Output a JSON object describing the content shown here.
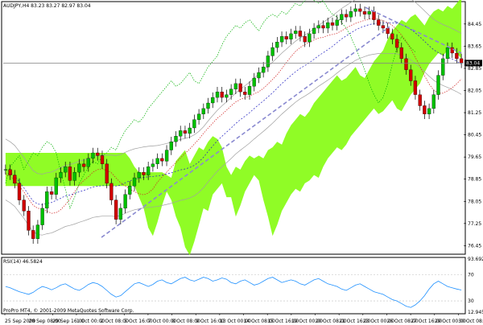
{
  "header": {
    "main_title": "AUDJPY,H4  83.23 83.27 82.97 83.04",
    "rsi_title": "RSI(14) 46.5824",
    "copyright": "ProPro MT4, © 2001-2009 MetaQuotes Software Corp."
  },
  "chart_data": [
    {
      "type": "candlestick",
      "title": "AUDJPY,H4",
      "ohlc_header": [
        83.23,
        83.27,
        82.97,
        83.04
      ],
      "current_price": 83.04,
      "y_ticks": [
        84.45,
        83.65,
        82.85,
        82.05,
        81.25,
        80.45,
        79.65,
        78.85,
        78.05,
        77.25,
        76.45
      ],
      "y_tick_labels": [
        "84.45",
        "83.65",
        "82.85",
        "82.05",
        "81.25",
        "80.45",
        "79.65",
        "78.85",
        "78.05",
        "77.25",
        "76.45"
      ],
      "ylim": [
        76.2,
        85.2
      ],
      "x_tick_labels": [
        "25 Sep 2009",
        "28 Sep 08:00",
        "29 Sep 16:00",
        "1 Oct 00:00",
        "2 Oct 08:00",
        "5 Oct 16:00",
        "7 Oct 00:00",
        "8 Oct 08:00",
        "9 Oct 16:00",
        "13 Oct 00:00",
        "14 Oct 08:00",
        "15 Oct 16:00",
        "19 Oct 00:00",
        "20 Oct 08:00",
        "21 Oct 16:00",
        "23 Oct 00:00",
        "26 Oct 08:00",
        "27 Oct 16:00",
        "29 Oct 00:00",
        "30 Oct 08:00"
      ],
      "closes": [
        79.2,
        79.0,
        78.7,
        78.1,
        77.7,
        77.0,
        76.7,
        77.2,
        77.8,
        78.4,
        78.3,
        78.9,
        79.1,
        79.3,
        78.8,
        79.1,
        79.4,
        79.3,
        79.6,
        79.8,
        79.7,
        79.4,
        78.7,
        78.1,
        77.4,
        77.8,
        78.3,
        78.6,
        78.9,
        79.1,
        79.0,
        79.3,
        79.4,
        79.6,
        79.5,
        79.9,
        80.2,
        80.4,
        80.6,
        80.5,
        80.7,
        81.0,
        81.2,
        81.4,
        81.6,
        81.8,
        82.0,
        81.8,
        81.9,
        82.1,
        82.3,
        82.0,
        81.9,
        82.2,
        82.5,
        82.7,
        82.9,
        83.3,
        83.6,
        83.8,
        84.0,
        83.9,
        84.1,
        84.2,
        84.0,
        83.8,
        84.1,
        84.3,
        84.4,
        84.3,
        84.5,
        84.4,
        84.6,
        84.8,
        84.7,
        84.9,
        85.0,
        84.9,
        84.8,
        84.9,
        84.6,
        84.4,
        84.3,
        84.1,
        83.9,
        83.6,
        83.2,
        82.8,
        82.4,
        81.9,
        81.5,
        81.2,
        81.4,
        81.9,
        82.6,
        83.2,
        83.6,
        83.4,
        83.2,
        83.04
      ],
      "trendlines": [
        {
          "from": {
            "x": "2 Oct 08:00",
            "y": 76.75
          },
          "to": {
            "x": "26 Oct 08:00",
            "y": 84.35
          }
        },
        {
          "from": {
            "x": "23 Oct 00:00",
            "y": 85.05
          },
          "to": {
            "x": "30 Oct 08:00",
            "y": 83.4
          }
        }
      ],
      "indicators": [
        "Ichimoku cloud",
        "Bollinger bands",
        "Moving averages"
      ]
    },
    {
      "type": "line",
      "title": "RSI(14)",
      "last_value": 46.5824,
      "y_ticks": [
        93.692,
        70,
        30,
        12.9456
      ],
      "y_tick_labels": [
        "93.692",
        "70",
        "30",
        "12.9456"
      ],
      "ylim": [
        12.9456,
        93.692
      ],
      "values": [
        52,
        50,
        47,
        44,
        42,
        40,
        43,
        48,
        52,
        50,
        47,
        50,
        54,
        56,
        52,
        48,
        46,
        50,
        55,
        58,
        56,
        52,
        46,
        40,
        36,
        38,
        44,
        50,
        56,
        58,
        55,
        52,
        55,
        60,
        62,
        58,
        56,
        60,
        64,
        66,
        62,
        60,
        63,
        66,
        64,
        60,
        62,
        65,
        63,
        58,
        56,
        60,
        62,
        58,
        54,
        56,
        60,
        64,
        66,
        62,
        58,
        60,
        62,
        60,
        56,
        54,
        58,
        62,
        64,
        60,
        56,
        54,
        52,
        48,
        46,
        50,
        54,
        56,
        52,
        48,
        44,
        42,
        40,
        36,
        32,
        30,
        26,
        22,
        20,
        24,
        30,
        38,
        48,
        56,
        60,
        56,
        52,
        50,
        48,
        46.58
      ]
    }
  ]
}
